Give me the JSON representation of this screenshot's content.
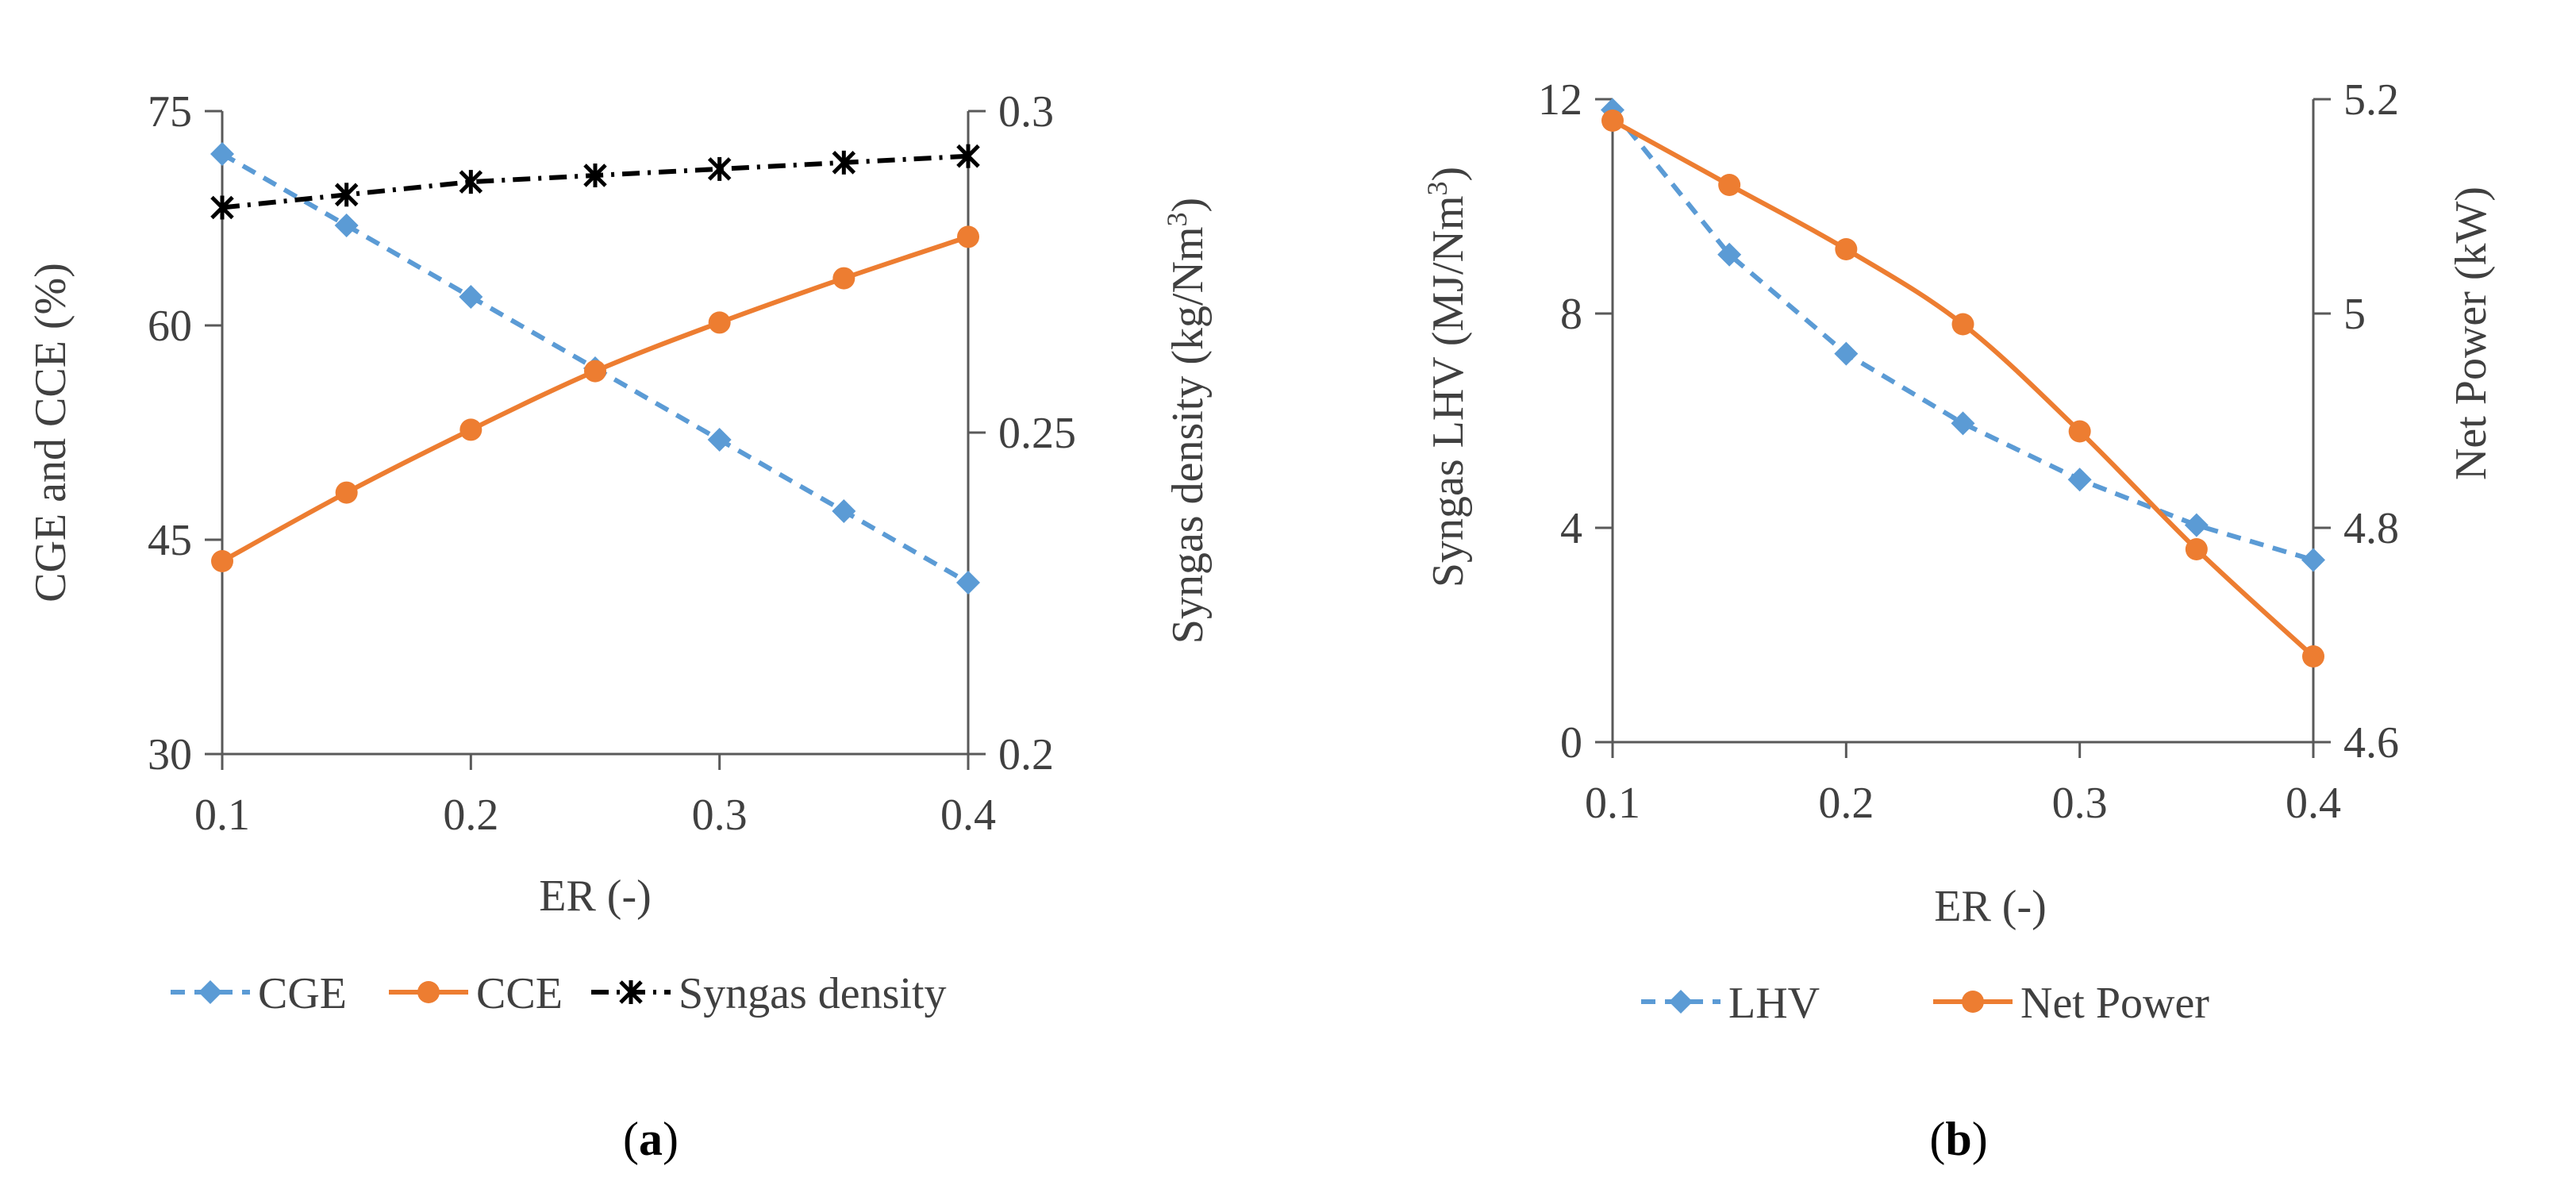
{
  "colors": {
    "blue": "#5B9BD5",
    "orange": "#ED7D31",
    "black": "#000000",
    "axis": "#595959",
    "text": "#404040"
  },
  "chart_data": [
    {
      "panel": "a",
      "panel_label": "a",
      "type": "line",
      "xlabel": "ER (-)",
      "ylabel_left": "CGE and CCE (%)",
      "ylabel_right": "Syngas density (kg/Nm",
      "ylabel_right_sup": "3",
      "ylabel_right_end": ")",
      "xlim": [
        0.1,
        0.4
      ],
      "ylim_left": [
        30,
        75
      ],
      "ylim_right": [
        0.2,
        0.3
      ],
      "x_ticks": [
        "0.1",
        "0.2",
        "0.3",
        "0.4"
      ],
      "y_left_ticks": [
        "30",
        "45",
        "60",
        "75"
      ],
      "y_right_ticks": [
        "0.2",
        "0.25",
        "0.3"
      ],
      "x": [
        0.1,
        0.15,
        0.2,
        0.25,
        0.3,
        0.35,
        0.4
      ],
      "series": [
        {
          "name": "CGE",
          "axis": "left",
          "marker": "diamond",
          "style": "dashed",
          "color": "#5B9BD5",
          "values": [
            72,
            67,
            62,
            57,
            52,
            47,
            42
          ]
        },
        {
          "name": "CCE",
          "axis": "left",
          "marker": "circle",
          "style": "solid",
          "color": "#ED7D31",
          "values": [
            43.5,
            48.3,
            52.7,
            56.8,
            60.2,
            63.3,
            66.2
          ]
        },
        {
          "name": "Syngas density",
          "axis": "right",
          "marker": "asterisk",
          "style": "dashdot",
          "color": "#000000",
          "values": [
            0.285,
            0.287,
            0.289,
            0.29,
            0.291,
            0.292,
            0.293
          ]
        }
      ],
      "legend": [
        "CGE",
        "CCE",
        "Syngas density"
      ]
    },
    {
      "panel": "b",
      "panel_label": "b",
      "type": "line",
      "xlabel": "ER (-)",
      "ylabel_left": "Syngas LHV (MJ/Nm",
      "ylabel_left_sup": "3",
      "ylabel_left_end": ")",
      "ylabel_right": "Net Power (kW)",
      "xlim": [
        0.1,
        0.4
      ],
      "ylim_left": [
        0,
        12
      ],
      "ylim_right": [
        4.6,
        5.2
      ],
      "x_ticks": [
        "0.1",
        "0.2",
        "0.3",
        "0.4"
      ],
      "y_left_ticks": [
        "0",
        "4",
        "8",
        "12"
      ],
      "y_right_ticks": [
        "4.6",
        "4.8",
        "5",
        "5.2"
      ],
      "x": [
        0.1,
        0.15,
        0.2,
        0.25,
        0.3,
        0.35,
        0.4
      ],
      "series": [
        {
          "name": "LHV",
          "axis": "left",
          "marker": "diamond",
          "style": "dashed",
          "color": "#5B9BD5",
          "values": [
            11.8,
            9.1,
            7.25,
            5.95,
            4.9,
            4.05,
            3.4
          ]
        },
        {
          "name": "Net Power",
          "axis": "right",
          "marker": "circle",
          "style": "solid",
          "color": "#ED7D31",
          "values": [
            5.18,
            5.12,
            5.06,
            4.99,
            4.89,
            4.78,
            4.68
          ]
        }
      ],
      "legend": [
        "LHV",
        "Net Power"
      ]
    }
  ]
}
